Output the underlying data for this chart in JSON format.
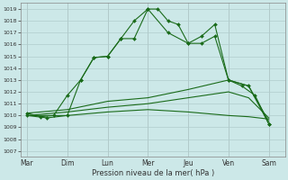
{
  "xlabel": "Pression niveau de la mer( hPa )",
  "background_color": "#cce8e8",
  "grid_color": "#b0cccc",
  "line_color": "#1a6b1a",
  "ylim": [
    1006.5,
    1019.5
  ],
  "yticks": [
    1007,
    1008,
    1009,
    1010,
    1011,
    1012,
    1013,
    1014,
    1015,
    1016,
    1017,
    1018,
    1019
  ],
  "x_labels": [
    "Mar",
    "Dim",
    "Lun",
    "Mer",
    "Jeu",
    "Ven",
    "Sam"
  ],
  "x_day_positions": [
    0,
    1,
    2,
    3,
    4,
    5,
    6
  ],
  "line1_x": [
    0,
    0.33,
    0.66,
    1.0,
    1.33,
    1.66,
    2.0,
    2.33,
    2.66,
    3.0,
    3.25,
    3.5,
    3.75,
    4.0,
    4.33,
    4.66,
    5.0,
    5.33,
    5.66,
    6.0
  ],
  "line1_y": [
    1010.2,
    1009.9,
    1010.0,
    1011.7,
    1013.0,
    1014.9,
    1015.0,
    1016.5,
    1018.0,
    1019.0,
    1019.0,
    1018.0,
    1017.7,
    1016.1,
    1016.1,
    1016.7,
    1013.0,
    1012.5,
    1011.7,
    1009.3
  ],
  "line2_x": [
    0,
    0.5,
    1.0,
    1.33,
    1.66,
    2.0,
    2.33,
    2.66,
    3.0,
    3.5,
    4.0,
    4.33,
    4.66,
    5.0,
    5.5,
    6.0
  ],
  "line2_y": [
    1010.0,
    1009.8,
    1010.0,
    1013.0,
    1014.9,
    1015.0,
    1016.5,
    1016.5,
    1019.0,
    1017.0,
    1016.1,
    1016.7,
    1017.7,
    1013.0,
    1012.5,
    1009.3
  ],
  "line3_x": [
    0,
    1,
    2,
    3,
    4,
    5,
    5.5,
    6.0
  ],
  "line3_y": [
    1010.2,
    1010.5,
    1011.2,
    1011.5,
    1012.2,
    1013.0,
    1012.5,
    1009.5
  ],
  "line4_x": [
    0,
    1,
    2,
    3,
    4,
    5,
    5.5,
    6.0
  ],
  "line4_y": [
    1010.0,
    1010.3,
    1010.7,
    1011.0,
    1011.5,
    1012.0,
    1011.5,
    1009.8
  ],
  "line5_x": [
    0,
    1,
    2,
    3,
    4,
    5,
    5.5,
    6.0
  ],
  "line5_y": [
    1010.0,
    1010.0,
    1010.3,
    1010.5,
    1010.3,
    1010.0,
    1009.9,
    1009.7
  ]
}
